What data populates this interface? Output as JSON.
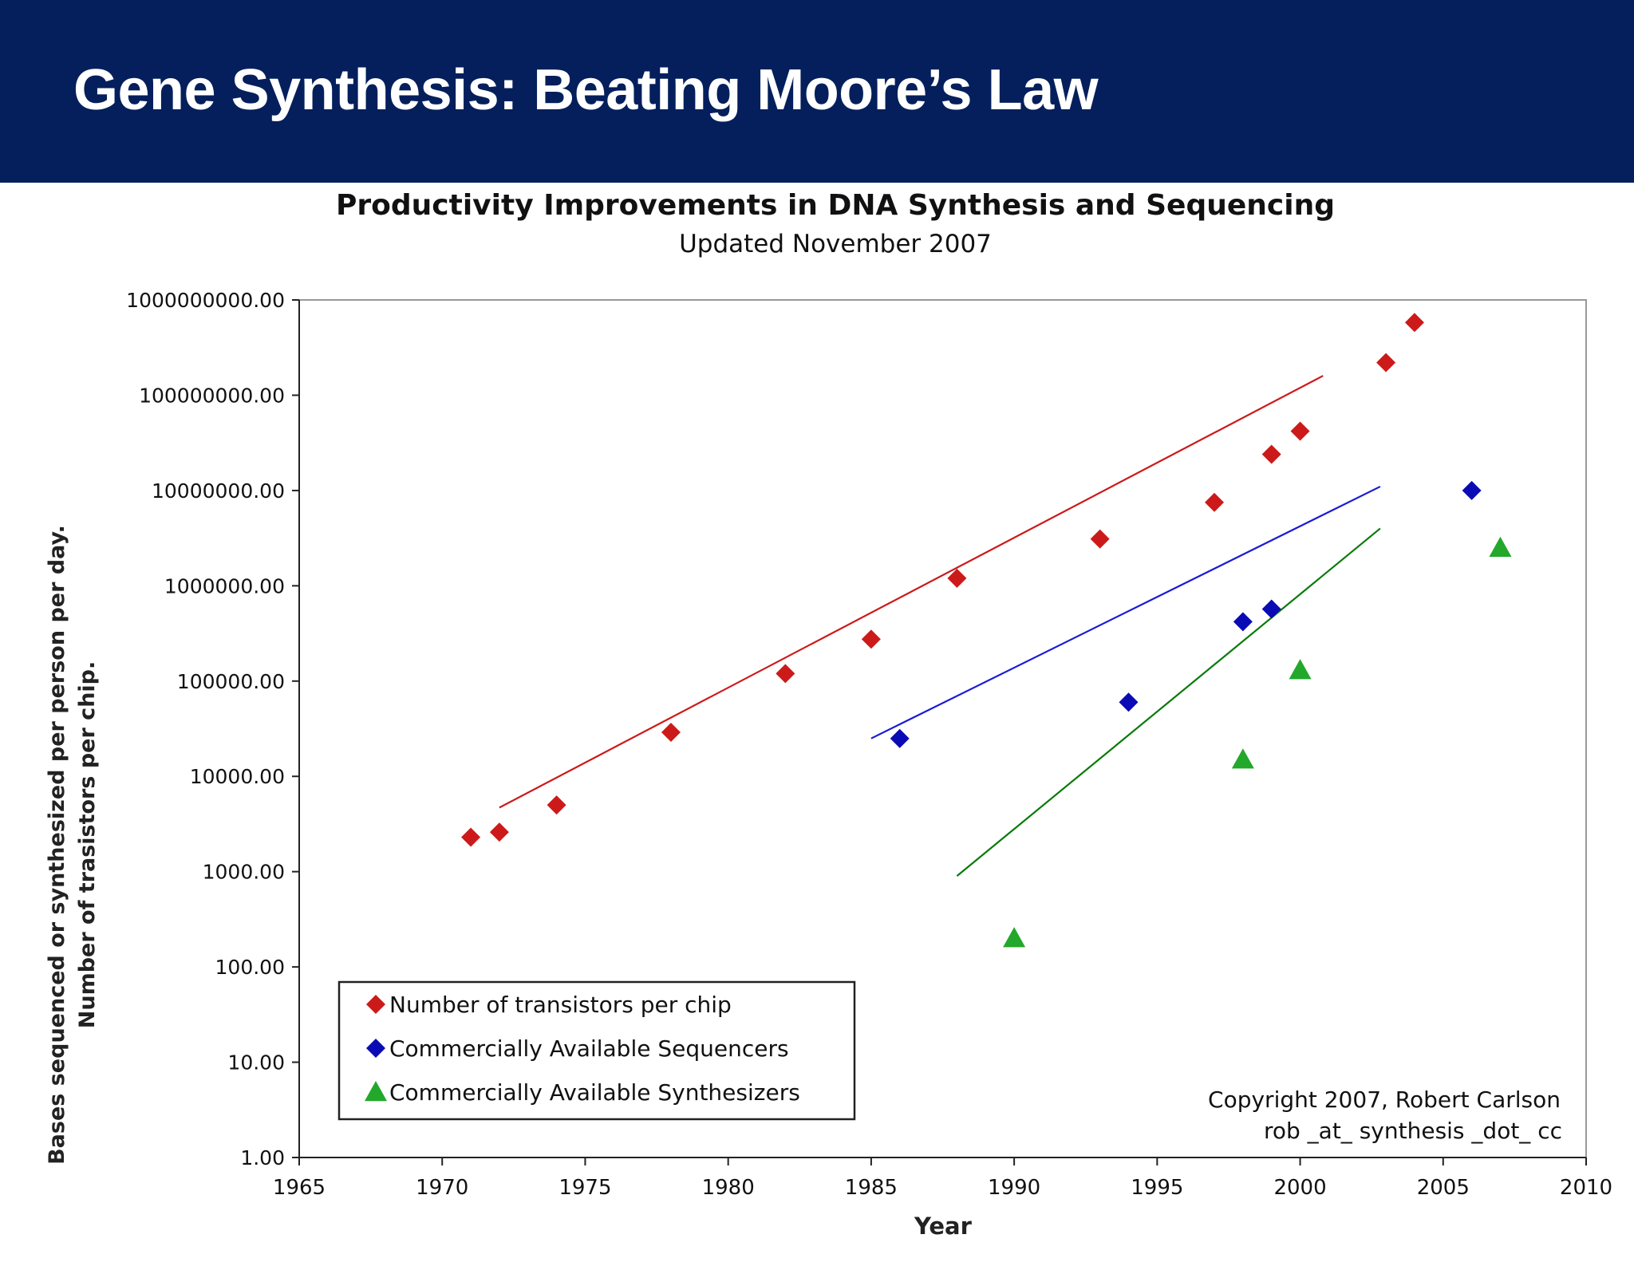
{
  "slide": {
    "title": "Gene Synthesis: Beating Moore’s Law"
  },
  "colors": {
    "banner": "#041f5c",
    "transistors": "#cc1a1a",
    "sequencers": "#0b0bb5",
    "synthesizers": "#22a82a",
    "sequencers_fit": "#1a1ad6",
    "synthesizers_fit": "#0a7a0a"
  },
  "chart_data": {
    "type": "scatter",
    "title": "Productivity Improvements in DNA Synthesis and Sequencing",
    "subtitle": "Updated November 2007",
    "xlabel": "Year",
    "ylabel": "Bases sequenced or synthesized per person per day.",
    "ylabel2": "Number of trasistors per chip.",
    "xlim": [
      1965,
      2010
    ],
    "ylim": [
      1,
      1000000000
    ],
    "yscale": "log",
    "x_ticks": [
      1965,
      1970,
      1975,
      1980,
      1985,
      1990,
      1995,
      2000,
      2005,
      2010
    ],
    "y_tick_labels": [
      "1.00",
      "10.00",
      "100.00",
      "1000.00",
      "10000.00",
      "100000.00",
      "1000000.00",
      "10000000.00",
      "100000000.00",
      "1000000000.00"
    ],
    "legend_position": "bottom-left",
    "series": [
      {
        "name": "Number of transistors per chip",
        "marker": "diamond",
        "points": [
          [
            1971,
            2300
          ],
          [
            1972,
            2600
          ],
          [
            1974,
            5000
          ],
          [
            1978,
            29000
          ],
          [
            1982,
            120000
          ],
          [
            1985,
            275000
          ],
          [
            1988,
            1200000
          ],
          [
            1993,
            3100000
          ],
          [
            1997,
            7500000
          ],
          [
            1999,
            24000000
          ],
          [
            2000,
            42000000
          ],
          [
            2003,
            220000000
          ],
          [
            2004,
            580000000
          ]
        ],
        "trendline": [
          [
            1972,
            4700
          ],
          [
            2000.8,
            160000000
          ]
        ]
      },
      {
        "name": "Commercially Available Sequencers",
        "marker": "diamond",
        "points": [
          [
            1986,
            25000
          ],
          [
            1994,
            60000
          ],
          [
            1998,
            420000
          ],
          [
            1999,
            570000
          ],
          [
            2006,
            10000000
          ]
        ],
        "trendline": [
          [
            1985,
            25000
          ],
          [
            2002.8,
            11000000
          ]
        ]
      },
      {
        "name": "Commercially Available Synthesizers",
        "marker": "triangle",
        "points": [
          [
            1990,
            200
          ],
          [
            1998,
            15000
          ],
          [
            2000,
            130000
          ],
          [
            2007,
            2500000
          ]
        ],
        "trendline": [
          [
            1988,
            900
          ],
          [
            2002.8,
            4000000
          ]
        ]
      }
    ],
    "annotations": [
      "Copyright 2007, Robert Carlson",
      "rob _at_ synthesis _dot_ cc"
    ]
  }
}
